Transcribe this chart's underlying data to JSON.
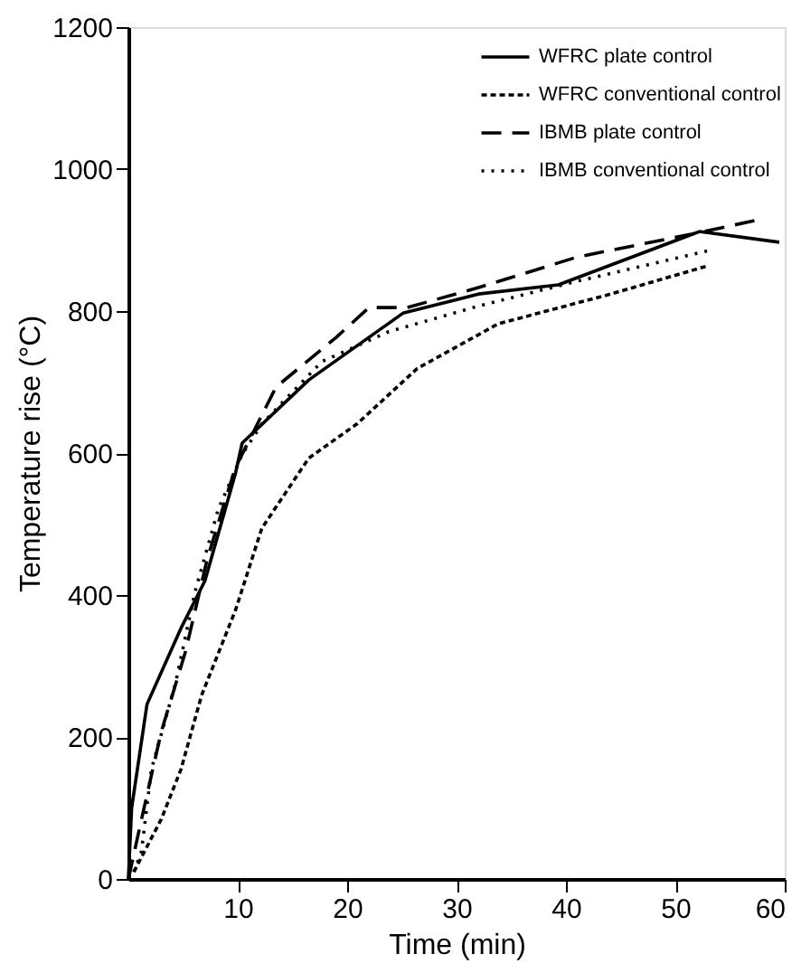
{
  "chart_data": {
    "type": "line",
    "xlabel": "Time  (min)",
    "ylabel": "Temperature rise  (°C)",
    "xlim": [
      0,
      60
    ],
    "xticks": [
      10,
      20,
      30,
      40,
      50,
      60
    ],
    "ylim": [
      0,
      1200
    ],
    "yticks": [
      0,
      200,
      400,
      600,
      800,
      1000,
      1200
    ],
    "grid": false,
    "legend": "top right",
    "marker": "none",
    "series": [
      {
        "name": "WFRC plate control",
        "color": "#000000",
        "line_style": "solid",
        "x": [
          0,
          0.3,
          1.7,
          4.8,
          7,
          9.8,
          10.4,
          16.5,
          25.1,
          32,
          39.3,
          52.2,
          59.5
        ],
        "values": [
          0,
          100,
          246,
          353,
          420,
          572,
          614,
          703,
          797,
          824,
          837,
          912,
          897
        ]
      },
      {
        "name": "WFRC conventional control",
        "color": "#000000",
        "line_style": "dashed",
        "x": [
          0.5,
          3,
          4.8,
          6.7,
          9.8,
          12.2,
          16.5,
          20.9,
          26.4,
          33.8,
          44.1,
          52.8
        ],
        "values": [
          10,
          84,
          154,
          259,
          379,
          494,
          593,
          641,
          719,
          782,
          824,
          863
        ]
      },
      {
        "name": "IBMB plate control",
        "color": "#000000",
        "line_style": "dashed",
        "x": [
          0,
          1.2,
          3,
          5.2,
          7.2,
          8.9,
          9.8,
          13.5,
          19,
          22,
          25.5,
          32,
          41,
          52,
          57.4
        ],
        "values": [
          0,
          84,
          207,
          319,
          450,
          536,
          580,
          693,
          763,
          805,
          805,
          833,
          876,
          910,
          928
        ]
      },
      {
        "name": "IBMB conventional control",
        "color": "#000000",
        "line_style": "dotted",
        "x": [
          0.5,
          1.2,
          2.1,
          4.3,
          6.1,
          8.2,
          10.4,
          12.2,
          17.7,
          23.8,
          32,
          41,
          53.3
        ],
        "values": [
          10,
          39,
          154,
          275,
          405,
          520,
          598,
          641,
          729,
          771,
          807,
          842,
          886
        ]
      }
    ]
  }
}
